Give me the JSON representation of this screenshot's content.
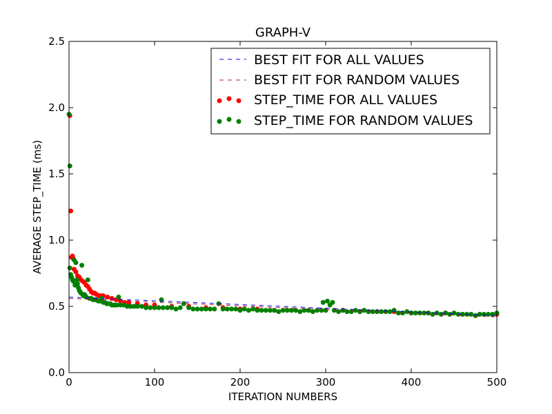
{
  "chart_data": {
    "type": "scatter",
    "title": "GRAPH-V",
    "xlabel": "ITERATION NUMBERS",
    "ylabel": "AVERAGE STEP_TIME (ms)",
    "xlim": [
      0,
      500
    ],
    "ylim": [
      0.0,
      2.5
    ],
    "x_ticks": [
      "0",
      "100",
      "200",
      "300",
      "400",
      "500"
    ],
    "y_ticks": [
      "0.0",
      "0.5",
      "1.0",
      "1.5",
      "2.0",
      "2.5"
    ],
    "grid": false,
    "legend_position": "top-right",
    "series": [
      {
        "name": "BEST FIT FOR ALL VALUES",
        "kind": "line",
        "style": "dashed",
        "color": "#0000ff",
        "x": [
          0,
          500
        ],
        "y": [
          0.57,
          0.43
        ]
      },
      {
        "name": "BEST FIT FOR RANDOM VALUES",
        "kind": "line",
        "style": "dashed",
        "color": "#b22222",
        "x": [
          0,
          500
        ],
        "y": [
          0.56,
          0.42
        ]
      },
      {
        "name": "STEP_TIME FOR ALL VALUES",
        "kind": "scatter",
        "color": "#ff0000",
        "x": [
          1,
          2,
          3,
          4,
          5,
          6,
          8,
          10,
          12,
          14,
          16,
          18,
          20,
          22,
          24,
          26,
          28,
          30,
          32,
          35,
          38,
          40,
          45,
          50,
          55,
          60,
          65,
          70,
          80,
          90,
          100,
          120,
          140,
          160,
          180,
          200,
          220,
          240,
          260,
          280,
          300,
          320,
          340,
          360,
          380,
          400,
          420,
          440,
          460,
          480,
          500
        ],
        "y": [
          1.94,
          1.22,
          0.87,
          0.88,
          0.86,
          0.78,
          0.76,
          0.73,
          0.72,
          0.7,
          0.69,
          0.68,
          0.66,
          0.65,
          0.63,
          0.61,
          0.6,
          0.6,
          0.59,
          0.58,
          0.58,
          0.58,
          0.57,
          0.56,
          0.55,
          0.54,
          0.53,
          0.53,
          0.52,
          0.51,
          0.51,
          0.5,
          0.5,
          0.49,
          0.49,
          0.48,
          0.48,
          0.47,
          0.47,
          0.47,
          0.47,
          0.47,
          0.46,
          0.46,
          0.46,
          0.45,
          0.45,
          0.45,
          0.44,
          0.44,
          0.44
        ]
      },
      {
        "name": "STEP_TIME FOR RANDOM VALUES",
        "kind": "scatter",
        "color": "#008000",
        "x": [
          0,
          1,
          1,
          2,
          3,
          4,
          5,
          6,
          7,
          8,
          9,
          10,
          11,
          12,
          13,
          14,
          15,
          16,
          17,
          18,
          19,
          20,
          22,
          24,
          26,
          28,
          30,
          32,
          34,
          36,
          38,
          40,
          42,
          44,
          46,
          48,
          50,
          52,
          54,
          56,
          58,
          60,
          64,
          68,
          72,
          76,
          80,
          85,
          90,
          95,
          100,
          105,
          108,
          110,
          115,
          120,
          125,
          130,
          134,
          140,
          145,
          150,
          155,
          160,
          165,
          170,
          175,
          180,
          185,
          190,
          195,
          200,
          205,
          210,
          215,
          220,
          225,
          230,
          235,
          240,
          245,
          250,
          255,
          260,
          265,
          270,
          275,
          280,
          285,
          290,
          295,
          297,
          300,
          302,
          305,
          308,
          310,
          315,
          320,
          325,
          330,
          335,
          340,
          345,
          350,
          355,
          360,
          365,
          370,
          375,
          380,
          385,
          390,
          395,
          400,
          405,
          410,
          415,
          420,
          425,
          430,
          435,
          440,
          445,
          450,
          455,
          460,
          465,
          470,
          475,
          480,
          485,
          490,
          495,
          500
        ],
        "y": [
          1.95,
          1.56,
          0.79,
          0.74,
          0.72,
          0.7,
          0.69,
          0.85,
          0.66,
          0.83,
          0.7,
          0.67,
          0.64,
          0.62,
          0.61,
          0.6,
          0.81,
          0.59,
          0.58,
          0.59,
          0.58,
          0.57,
          0.7,
          0.56,
          0.56,
          0.55,
          0.55,
          0.55,
          0.54,
          0.54,
          0.56,
          0.53,
          0.53,
          0.52,
          0.52,
          0.52,
          0.51,
          0.51,
          0.51,
          0.51,
          0.57,
          0.51,
          0.51,
          0.5,
          0.5,
          0.5,
          0.5,
          0.5,
          0.49,
          0.49,
          0.49,
          0.49,
          0.55,
          0.49,
          0.49,
          0.49,
          0.48,
          0.49,
          0.52,
          0.49,
          0.48,
          0.48,
          0.48,
          0.48,
          0.48,
          0.48,
          0.52,
          0.48,
          0.48,
          0.48,
          0.48,
          0.47,
          0.48,
          0.47,
          0.48,
          0.47,
          0.47,
          0.47,
          0.47,
          0.47,
          0.46,
          0.47,
          0.47,
          0.47,
          0.47,
          0.46,
          0.47,
          0.47,
          0.46,
          0.47,
          0.47,
          0.53,
          0.47,
          0.54,
          0.51,
          0.53,
          0.47,
          0.46,
          0.47,
          0.46,
          0.46,
          0.47,
          0.46,
          0.47,
          0.46,
          0.46,
          0.46,
          0.46,
          0.46,
          0.46,
          0.47,
          0.45,
          0.45,
          0.46,
          0.45,
          0.45,
          0.45,
          0.45,
          0.45,
          0.44,
          0.45,
          0.44,
          0.45,
          0.44,
          0.45,
          0.44,
          0.44,
          0.44,
          0.44,
          0.43,
          0.44,
          0.44,
          0.44,
          0.44,
          0.45
        ]
      }
    ]
  }
}
